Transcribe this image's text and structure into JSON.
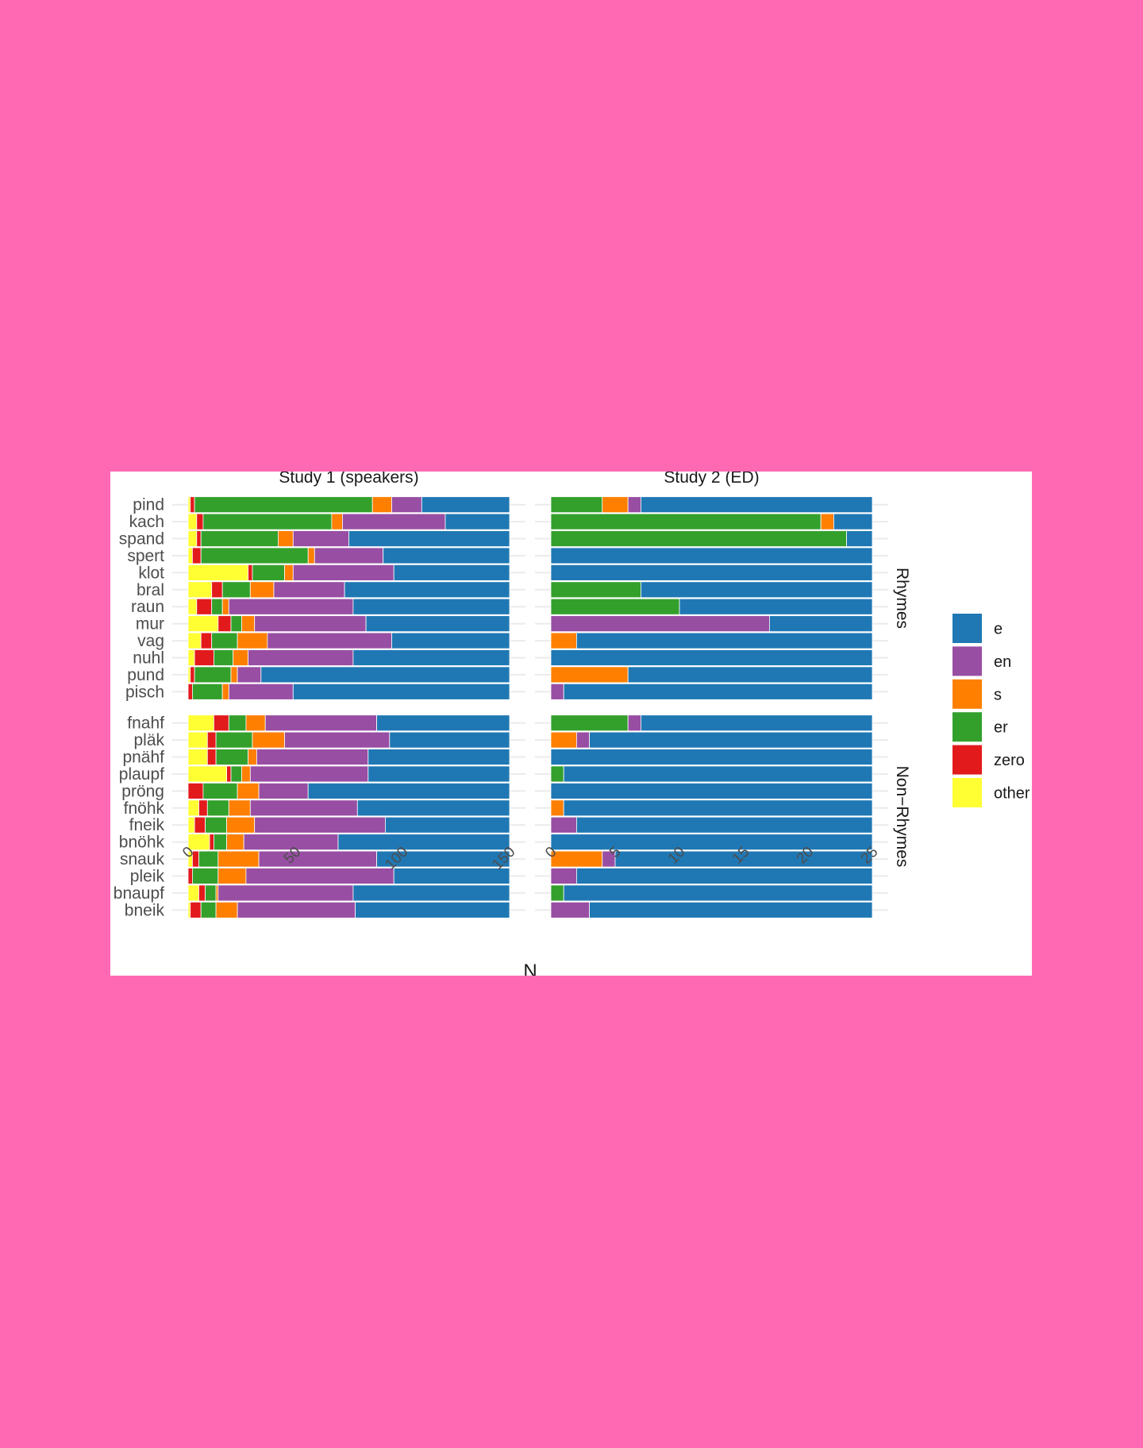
{
  "chart_data": {
    "type": "bar",
    "orientation": "horizontal",
    "stacked": true,
    "xlabel": "N",
    "legend": {
      "position": "right",
      "entries": [
        "e",
        "en",
        "s",
        "er",
        "zero",
        "other"
      ]
    },
    "colors": {
      "e": "#1F78B4",
      "en": "#984EA3",
      "s": "#FF7F00",
      "er": "#33A02C",
      "zero": "#E31A1C",
      "other": "#FFFF33"
    },
    "stack_order": [
      "other",
      "zero",
      "er",
      "s",
      "en",
      "e"
    ],
    "columns": [
      {
        "title": "Study 1 (speakers)",
        "xlim": [
          0,
          150
        ],
        "ticks": [
          0,
          50,
          100,
          150
        ]
      },
      {
        "title": "Study 2 (ED)",
        "xlim": [
          0,
          25
        ],
        "ticks": [
          0,
          5,
          10,
          15,
          20,
          25
        ]
      }
    ],
    "rows": [
      {
        "label": "Rhymes",
        "categories": [
          "pind",
          "kach",
          "spand",
          "spert",
          "klot",
          "bral",
          "raun",
          "mur",
          "vag",
          "nuhl",
          "pund",
          "pisch"
        ],
        "panels": [
          {
            "column": "Study 1 (speakers)",
            "series": [
              {
                "name": "other",
                "values": [
                  1,
                  4,
                  4,
                  2,
                  28,
                  11,
                  4,
                  14,
                  6,
                  3,
                  1,
                  0
                ]
              },
              {
                "name": "zero",
                "values": [
                  2,
                  3,
                  2,
                  4,
                  2,
                  5,
                  7,
                  6,
                  5,
                  9,
                  2,
                  2
                ]
              },
              {
                "name": "er",
                "values": [
                  83,
                  60,
                  36,
                  50,
                  15,
                  13,
                  5,
                  5,
                  12,
                  9,
                  17,
                  14
                ]
              },
              {
                "name": "s",
                "values": [
                  9,
                  5,
                  7,
                  3,
                  4,
                  11,
                  3,
                  6,
                  14,
                  7,
                  3,
                  3
                ]
              },
              {
                "name": "en",
                "values": [
                  14,
                  48,
                  26,
                  32,
                  47,
                  33,
                  58,
                  52,
                  58,
                  49,
                  11,
                  30
                ]
              },
              {
                "name": "e",
                "values": [
                  41,
                  30,
                  75,
                  59,
                  54,
                  77,
                  73,
                  67,
                  55,
                  73,
                  116,
                  101
                ]
              }
            ]
          },
          {
            "column": "Study 2 (ED)",
            "series": [
              {
                "name": "other",
                "values": [
                  0,
                  0,
                  0,
                  0,
                  0,
                  0,
                  0,
                  0,
                  0,
                  0,
                  0,
                  0
                ]
              },
              {
                "name": "zero",
                "values": [
                  0,
                  0,
                  0,
                  0,
                  0,
                  0,
                  0,
                  0,
                  0,
                  0,
                  0,
                  0
                ]
              },
              {
                "name": "er",
                "values": [
                  4,
                  21,
                  23,
                  0,
                  0,
                  7,
                  10,
                  0,
                  0,
                  0,
                  0,
                  0
                ]
              },
              {
                "name": "s",
                "values": [
                  2,
                  1,
                  0,
                  0,
                  0,
                  0,
                  0,
                  0,
                  2,
                  0,
                  6,
                  0
                ]
              },
              {
                "name": "en",
                "values": [
                  1,
                  0,
                  0,
                  0,
                  0,
                  0,
                  0,
                  17,
                  0,
                  0,
                  0,
                  1
                ]
              },
              {
                "name": "e",
                "values": [
                  18,
                  3,
                  2,
                  25,
                  25,
                  18,
                  15,
                  8,
                  23,
                  25,
                  19,
                  24
                ]
              }
            ]
          }
        ]
      },
      {
        "label": "Non−Rhymes",
        "categories": [
          "fnahf",
          "pläk",
          "pnähf",
          "plaupf",
          "pröng",
          "fnöhk",
          "fneik",
          "bnöhk",
          "snauk",
          "pleik",
          "bnaupf",
          "bneik"
        ],
        "panels": [
          {
            "column": "Study 1 (speakers)",
            "series": [
              {
                "name": "other",
                "values": [
                  12,
                  9,
                  9,
                  18,
                  0,
                  5,
                  3,
                  10,
                  2,
                  0,
                  5,
                  1
                ]
              },
              {
                "name": "zero",
                "values": [
                  7,
                  4,
                  4,
                  2,
                  7,
                  4,
                  5,
                  2,
                  3,
                  2,
                  3,
                  5
                ]
              },
              {
                "name": "er",
                "values": [
                  8,
                  17,
                  15,
                  5,
                  16,
                  10,
                  10,
                  6,
                  9,
                  12,
                  5,
                  7
                ]
              },
              {
                "name": "s",
                "values": [
                  9,
                  15,
                  4,
                  4,
                  10,
                  10,
                  13,
                  8,
                  19,
                  13,
                  1,
                  10
                ]
              },
              {
                "name": "en",
                "values": [
                  52,
                  49,
                  52,
                  55,
                  23,
                  50,
                  61,
                  44,
                  55,
                  69,
                  63,
                  55
                ]
              },
              {
                "name": "e",
                "values": [
                  62,
                  56,
                  66,
                  66,
                  94,
                  71,
                  58,
                  80,
                  62,
                  54,
                  73,
                  72
                ]
              }
            ]
          },
          {
            "column": "Study 2 (ED)",
            "series": [
              {
                "name": "other",
                "values": [
                  0,
                  0,
                  0,
                  0,
                  0,
                  0,
                  0,
                  0,
                  0,
                  0,
                  0,
                  0
                ]
              },
              {
                "name": "zero",
                "values": [
                  0,
                  0,
                  0,
                  0,
                  0,
                  0,
                  0,
                  0,
                  0,
                  0,
                  0,
                  0
                ]
              },
              {
                "name": "er",
                "values": [
                  6,
                  0,
                  0,
                  1,
                  0,
                  0,
                  0,
                  0,
                  0,
                  0,
                  1,
                  0
                ]
              },
              {
                "name": "s",
                "values": [
                  0,
                  2,
                  0,
                  0,
                  0,
                  1,
                  0,
                  0,
                  4,
                  0,
                  0,
                  0
                ]
              },
              {
                "name": "en",
                "values": [
                  1,
                  1,
                  0,
                  0,
                  0,
                  0,
                  2,
                  0,
                  1,
                  2,
                  0,
                  3
                ]
              },
              {
                "name": "e",
                "values": [
                  18,
                  22,
                  25,
                  24,
                  25,
                  24,
                  23,
                  25,
                  20,
                  23,
                  24,
                  22
                ]
              }
            ]
          }
        ]
      }
    ]
  }
}
